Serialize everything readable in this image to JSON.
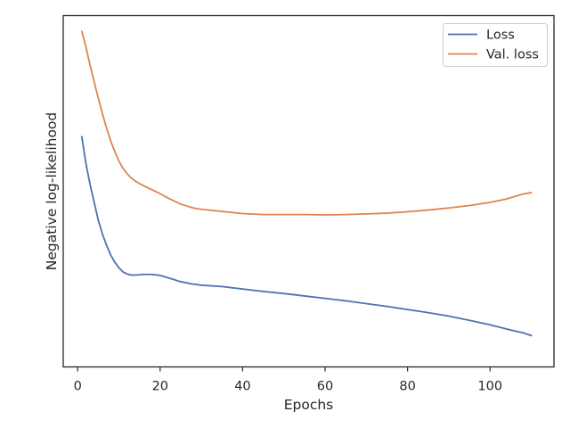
{
  "chart_data": {
    "type": "line",
    "title": "",
    "xlabel": "Epochs",
    "ylabel": "Negative log-likelihood",
    "xlim": [
      -3.5,
      115.5
    ],
    "ylim": [
      -0.01,
      1.0
    ],
    "x_ticks": [
      0,
      20,
      40,
      60,
      80,
      100
    ],
    "y_ticks_shown": false,
    "grid": false,
    "legend": {
      "position": "top-right"
    },
    "series": [
      {
        "name": "Loss",
        "color": "#4c72b0",
        "points": [
          [
            1,
            0.652
          ],
          [
            2,
            0.575
          ],
          [
            3,
            0.515
          ],
          [
            4,
            0.463
          ],
          [
            5,
            0.412
          ],
          [
            6,
            0.372
          ],
          [
            7,
            0.34
          ],
          [
            8,
            0.312
          ],
          [
            9,
            0.291
          ],
          [
            10,
            0.275
          ],
          [
            11,
            0.263
          ],
          [
            12,
            0.257
          ],
          [
            13,
            0.254
          ],
          [
            14,
            0.254
          ],
          [
            15,
            0.255
          ],
          [
            16,
            0.256
          ],
          [
            18,
            0.256
          ],
          [
            20,
            0.253
          ],
          [
            22,
            0.246
          ],
          [
            25,
            0.235
          ],
          [
            28,
            0.228
          ],
          [
            30,
            0.225
          ],
          [
            35,
            0.221
          ],
          [
            40,
            0.214
          ],
          [
            45,
            0.207
          ],
          [
            50,
            0.201
          ],
          [
            55,
            0.194
          ],
          [
            60,
            0.187
          ],
          [
            65,
            0.18
          ],
          [
            70,
            0.172
          ],
          [
            75,
            0.164
          ],
          [
            80,
            0.155
          ],
          [
            85,
            0.146
          ],
          [
            90,
            0.136
          ],
          [
            95,
            0.124
          ],
          [
            100,
            0.111
          ],
          [
            105,
            0.096
          ],
          [
            108,
            0.088
          ],
          [
            110,
            0.08
          ]
        ]
      },
      {
        "name": "Val. loss",
        "color": "#dd8452",
        "points": [
          [
            1,
            0.955
          ],
          [
            2,
            0.91
          ],
          [
            3,
            0.858
          ],
          [
            4,
            0.81
          ],
          [
            5,
            0.763
          ],
          [
            6,
            0.718
          ],
          [
            7,
            0.677
          ],
          [
            8,
            0.64
          ],
          [
            9,
            0.609
          ],
          [
            10,
            0.582
          ],
          [
            11,
            0.561
          ],
          [
            12,
            0.545
          ],
          [
            13,
            0.533
          ],
          [
            14,
            0.524
          ],
          [
            15,
            0.517
          ],
          [
            17,
            0.505
          ],
          [
            20,
            0.488
          ],
          [
            22,
            0.475
          ],
          [
            25,
            0.458
          ],
          [
            28,
            0.447
          ],
          [
            30,
            0.443
          ],
          [
            35,
            0.437
          ],
          [
            40,
            0.431
          ],
          [
            45,
            0.428
          ],
          [
            50,
            0.428
          ],
          [
            55,
            0.428
          ],
          [
            60,
            0.427
          ],
          [
            65,
            0.428
          ],
          [
            70,
            0.43
          ],
          [
            75,
            0.432
          ],
          [
            80,
            0.436
          ],
          [
            85,
            0.441
          ],
          [
            90,
            0.447
          ],
          [
            95,
            0.454
          ],
          [
            100,
            0.463
          ],
          [
            104,
            0.473
          ],
          [
            106,
            0.48
          ],
          [
            108,
            0.487
          ],
          [
            110,
            0.491
          ]
        ]
      }
    ]
  }
}
